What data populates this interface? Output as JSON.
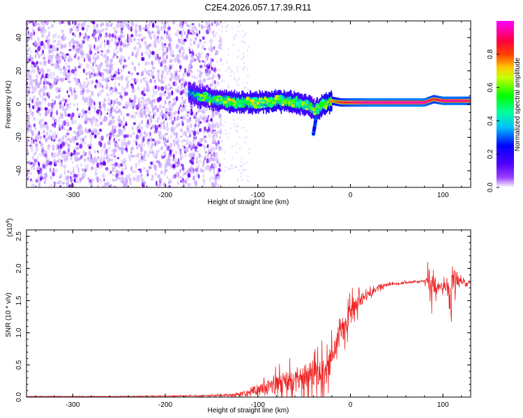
{
  "chart_data": [
    {
      "type": "heatmap",
      "title": "C2E4.2026.057.17.39.R11",
      "xlabel": "Height of straight line (km)",
      "ylabel": "Frequency (Hz)",
      "xlim": [
        -350,
        130
      ],
      "ylim": [
        -50,
        50
      ],
      "xticks": [
        "-300",
        "-200",
        "-100",
        "0",
        "100"
      ],
      "yticks": [
        "-40",
        "-20",
        "0",
        "20",
        "40"
      ],
      "colorbar": {
        "label": "Normalized spectral amplitude",
        "range": [
          0,
          1
        ],
        "ticks": [
          "0.0",
          "0.2",
          "0.4",
          "0.6",
          "0.8"
        ],
        "colors": [
          "#ffffff",
          "#7a00ff",
          "#0000ff",
          "#00ffff",
          "#00ff00",
          "#ffff00",
          "#ff8000",
          "#ff0000",
          "#ff00ff"
        ]
      },
      "noise_region": {
        "x_range": [
          -350,
          -140
        ],
        "freq_range": [
          -50,
          50
        ],
        "amplitude": 0.1
      },
      "signal_track": {
        "x": [
          -175,
          -160,
          -140,
          -120,
          -100,
          -80,
          -60,
          -45,
          -38,
          -30,
          -20,
          -10,
          0,
          20,
          40,
          60,
          80,
          90,
          100,
          115,
          130
        ],
        "frequency": [
          7,
          4,
          2,
          1,
          1,
          2,
          1,
          -1,
          -4,
          -1,
          2,
          1,
          1,
          1,
          1,
          1,
          1,
          3,
          2,
          2,
          2
        ],
        "amplitude": [
          0.3,
          0.4,
          0.45,
          0.5,
          0.5,
          0.55,
          0.5,
          0.45,
          0.4,
          0.55,
          0.7,
          0.8,
          0.85,
          0.92,
          0.92,
          0.92,
          0.92,
          0.8,
          0.9,
          0.9,
          0.85
        ]
      },
      "branch": {
        "x": [
          -40,
          -37
        ],
        "frequency": [
          -18,
          -8
        ]
      }
    },
    {
      "type": "line",
      "xlabel": "Height of straight line (km)",
      "ylabel": "SNR (10 * v/v)",
      "multiplier_base": "(x10",
      "multiplier_exp": "4",
      "multiplier_close": ")",
      "xlim": [
        -350,
        130
      ],
      "ylim": [
        0,
        2.6
      ],
      "xticks": [
        "-300",
        "-200",
        "-100",
        "0",
        "100"
      ],
      "yticks": [
        "0.0",
        "0.5",
        "1.0",
        "1.5",
        "2.0",
        "2.5"
      ],
      "series": [
        {
          "name": "SNR",
          "color": "#ee2222",
          "x": [
            -350,
            -250,
            -160,
            -120,
            -110,
            -100,
            -90,
            -80,
            -70,
            -60,
            -50,
            -40,
            -30,
            -22,
            -20,
            -15,
            -10,
            -5,
            0,
            5,
            10,
            20,
            30,
            40,
            60,
            80,
            85,
            88,
            90,
            95,
            100,
            105,
            108,
            110,
            115,
            130
          ],
          "y": [
            0.01,
            0.01,
            0.02,
            0.04,
            0.07,
            0.12,
            0.16,
            0.2,
            0.24,
            0.28,
            0.33,
            0.38,
            0.42,
            0.45,
            0.6,
            0.8,
            1.0,
            1.15,
            1.3,
            1.4,
            1.5,
            1.6,
            1.7,
            1.75,
            1.78,
            1.8,
            1.85,
            1.6,
            1.75,
            1.7,
            1.72,
            1.75,
            1.2,
            1.9,
            1.8,
            1.78
          ],
          "noise_amplitude": [
            0.005,
            0.005,
            0.01,
            0.03,
            0.08,
            0.12,
            0.15,
            0.2,
            0.22,
            0.25,
            0.28,
            0.3,
            0.35,
            0.3,
            0.3,
            0.3,
            0.28,
            0.28,
            0.25,
            0.2,
            0.15,
            0.08,
            0.05,
            0.03,
            0.02,
            0.02,
            0.25,
            0.5,
            0.3,
            0.1,
            0.1,
            0.2,
            0.5,
            0.4,
            0.1,
            0.02
          ]
        }
      ]
    }
  ]
}
